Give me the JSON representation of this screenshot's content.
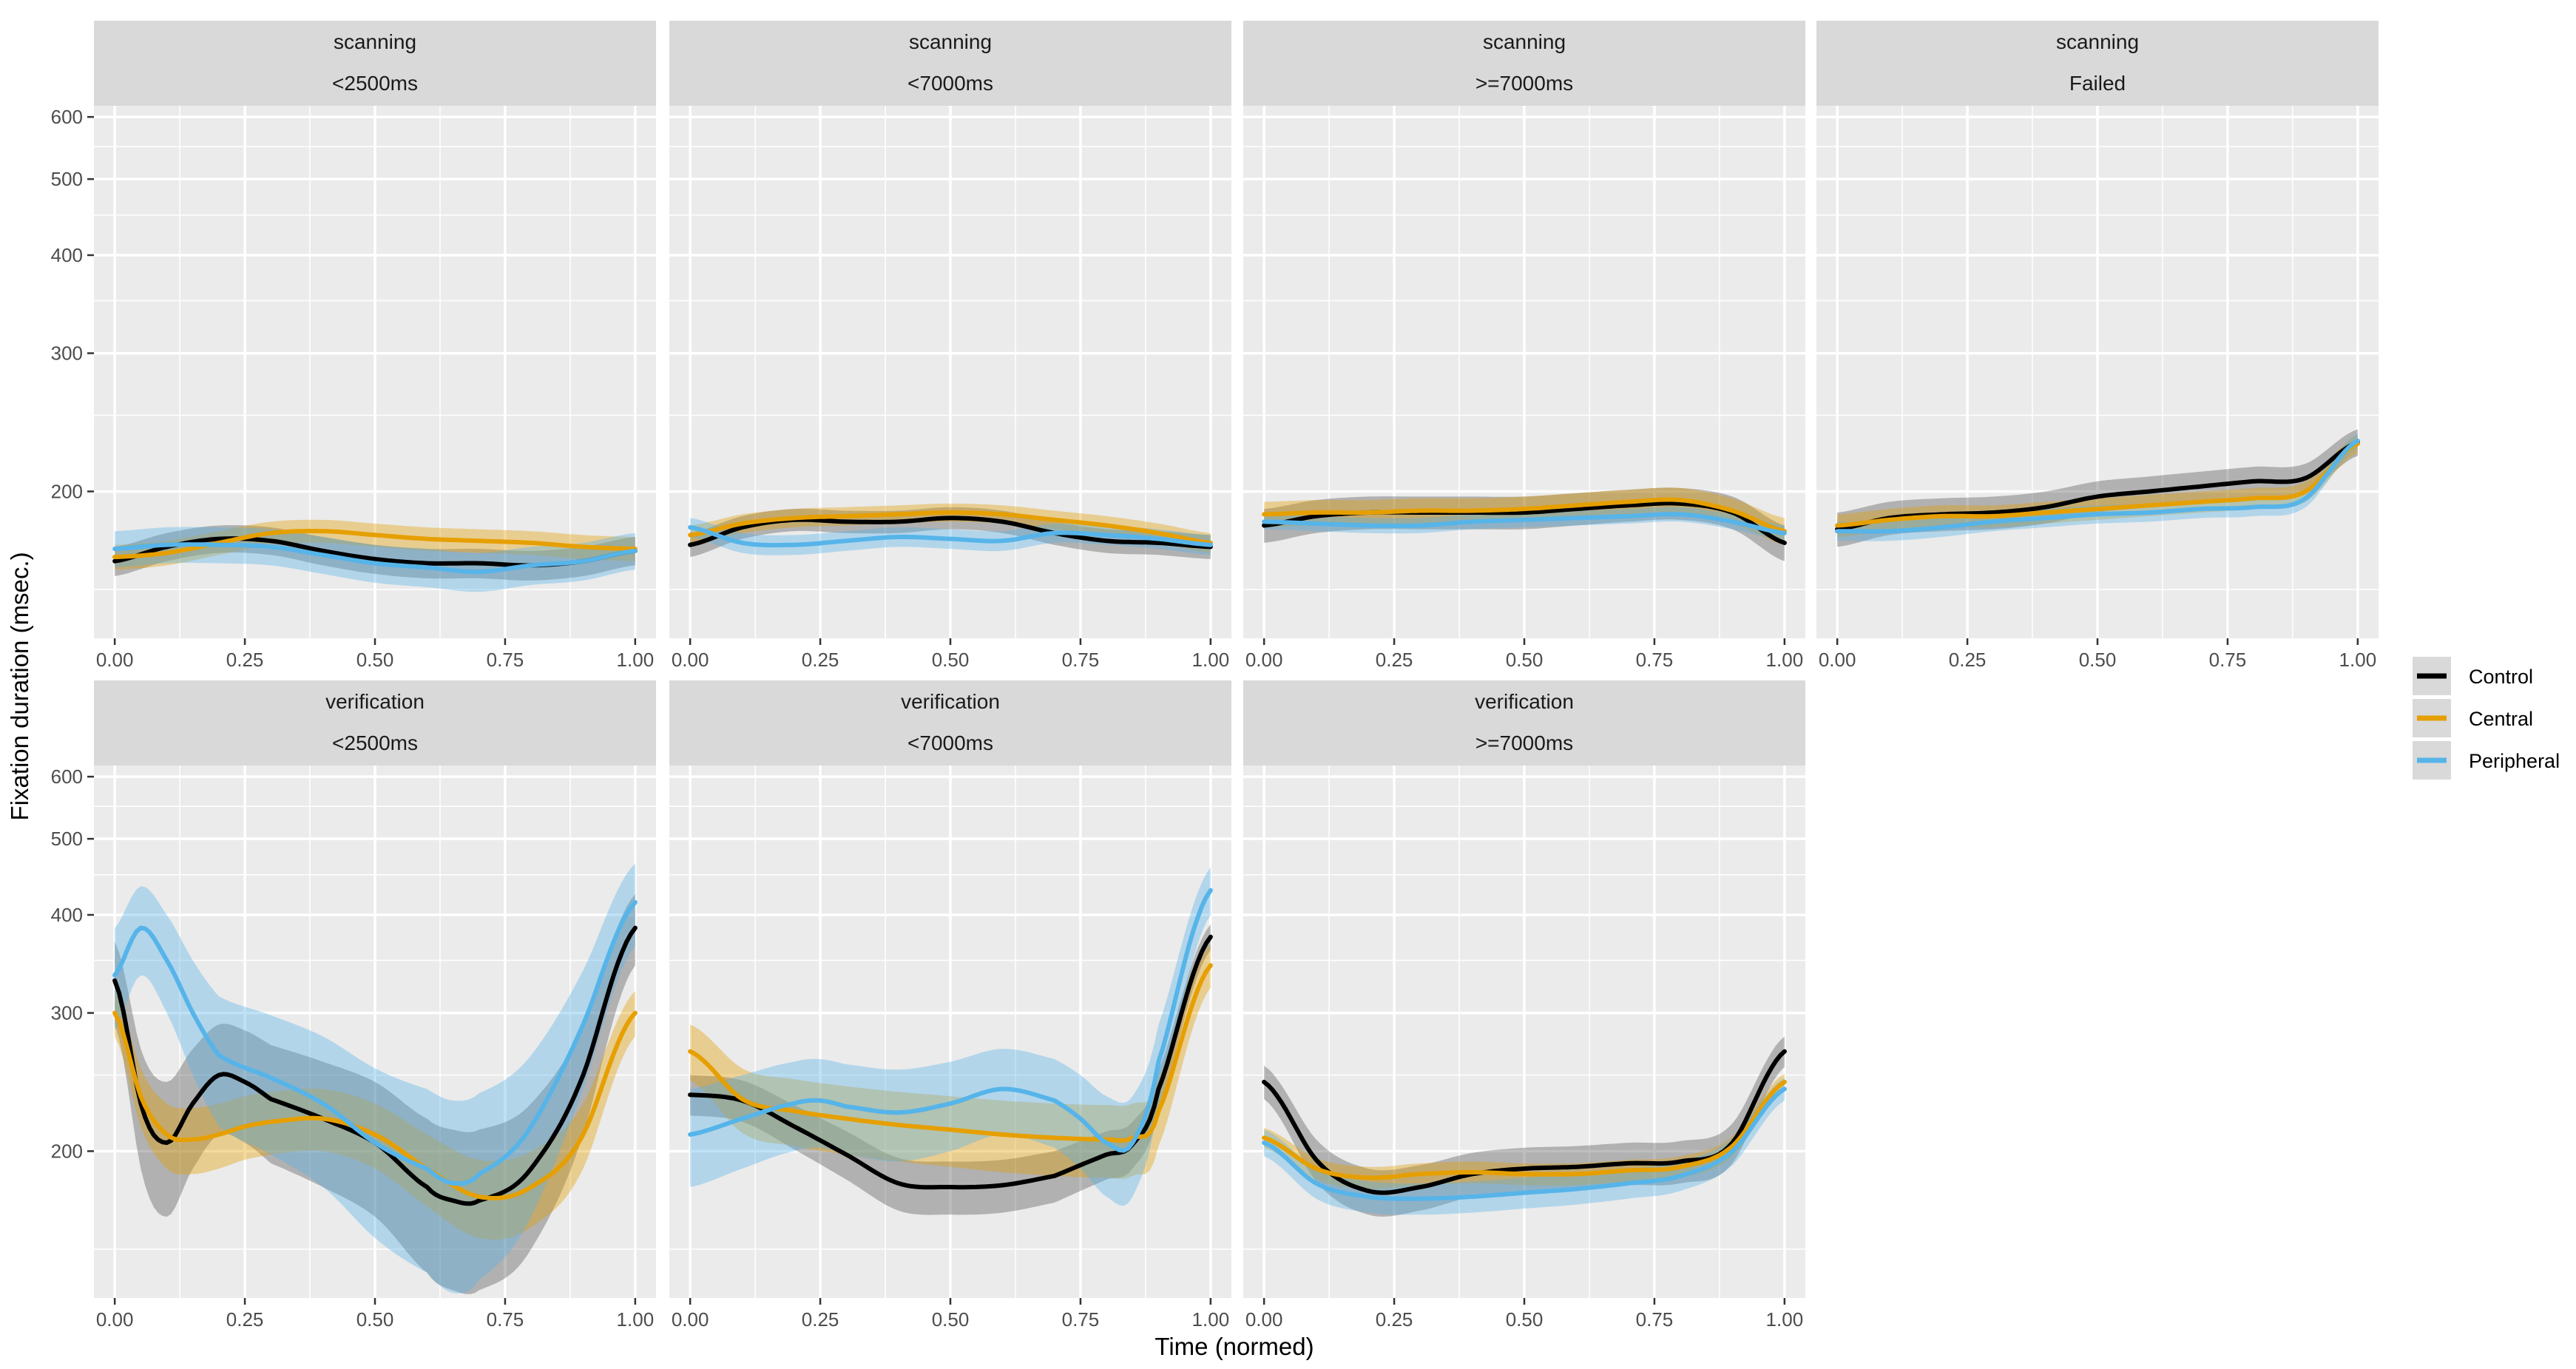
{
  "chart_data": {
    "type": "line",
    "xlabel": "Time (normed)",
    "ylabel": "Fixation duration (msec.)",
    "y_scale": "log",
    "ylim": [
      130,
      620
    ],
    "xlim": [
      -0.04,
      1.04
    ],
    "grid": true,
    "x_ticks": [
      "0.00",
      "0.25",
      "0.50",
      "0.75",
      "1.00"
    ],
    "x_tick_values": [
      0,
      0.25,
      0.5,
      0.75,
      1
    ],
    "y_ticks": [
      "200",
      "300",
      "400",
      "500",
      "600"
    ],
    "y_tick_values": [
      200,
      300,
      400,
      500,
      600
    ],
    "legend": {
      "position": "right",
      "entries": [
        {
          "name": "Control",
          "color": "#000000"
        },
        {
          "name": "Central",
          "color": "#E69F00"
        },
        {
          "name": "Peripheral",
          "color": "#56B4E9"
        }
      ]
    },
    "panels": [
      {
        "row": 0,
        "col": 0,
        "strip": [
          "scanning",
          "<2500ms"
        ],
        "series": [
          {
            "name": "Control",
            "x": [
              0,
              0.1,
              0.2,
              0.3,
              0.4,
              0.5,
              0.6,
              0.7,
              0.8,
              0.9,
              1
            ],
            "y": [
              163,
              170,
              174,
              173,
              168,
              164,
              162,
              162,
              161,
              163,
              168
            ],
            "band": 7
          },
          {
            "name": "Central",
            "x": [
              0,
              0.1,
              0.2,
              0.3,
              0.4,
              0.5,
              0.6,
              0.7,
              0.8,
              0.9,
              1
            ],
            "y": [
              165,
              167,
              172,
              177,
              178,
              176,
              174,
              173,
              172,
              170,
              169
            ],
            "band": 6
          },
          {
            "name": "Peripheral",
            "x": [
              0,
              0.1,
              0.2,
              0.3,
              0.4,
              0.5,
              0.6,
              0.7,
              0.8,
              0.9,
              1
            ],
            "y": [
              169,
              171,
              171,
              170,
              166,
              162,
              160,
              158,
              161,
              163,
              168
            ],
            "band": 9
          }
        ]
      },
      {
        "row": 0,
        "col": 1,
        "strip": [
          "scanning",
          "<7000ms"
        ],
        "series": [
          {
            "name": "Control",
            "x": [
              0,
              0.1,
              0.2,
              0.3,
              0.4,
              0.5,
              0.6,
              0.7,
              0.8,
              0.9,
              1
            ],
            "y": [
              171,
              180,
              184,
              183,
              183,
              185,
              183,
              177,
              173,
              172,
              170
            ],
            "band": 6
          },
          {
            "name": "Central",
            "x": [
              0,
              0.1,
              0.2,
              0.3,
              0.4,
              0.5,
              0.6,
              0.7,
              0.8,
              0.9,
              1
            ],
            "y": [
              176,
              182,
              185,
              186,
              187,
              188,
              187,
              184,
              181,
              177,
              172
            ],
            "band": 5
          },
          {
            "name": "Peripheral",
            "x": [
              0,
              0.1,
              0.2,
              0.3,
              0.4,
              0.5,
              0.6,
              0.7,
              0.8,
              0.9,
              1
            ],
            "y": [
              180,
              172,
              171,
              173,
              175,
              174,
              173,
              177,
              176,
              174,
              171
            ],
            "band": 5
          }
        ]
      },
      {
        "row": 0,
        "col": 2,
        "strip": [
          "scanning",
          ">=7000ms"
        ],
        "series": [
          {
            "name": "Control",
            "x": [
              0,
              0.1,
              0.2,
              0.3,
              0.4,
              0.5,
              0.6,
              0.7,
              0.8,
              0.9,
              1
            ],
            "y": [
              181,
              186,
              188,
              188,
              188,
              188,
              190,
              192,
              193,
              188,
              172
            ],
            "band": 9
          },
          {
            "name": "Central",
            "x": [
              0,
              0.1,
              0.2,
              0.3,
              0.4,
              0.5,
              0.6,
              0.7,
              0.8,
              0.9,
              1
            ],
            "y": [
              187,
              188,
              188,
              189,
              189,
              190,
              192,
              194,
              195,
              189,
              178
            ],
            "band": 7
          },
          {
            "name": "Peripheral",
            "x": [
              0,
              0.1,
              0.2,
              0.3,
              0.4,
              0.5,
              0.6,
              0.7,
              0.8,
              0.9,
              1
            ],
            "y": [
              183,
              182,
              181,
              181,
              183,
              184,
              185,
              186,
              187,
              183,
              177
            ],
            "band": 4
          }
        ]
      },
      {
        "row": 0,
        "col": 3,
        "strip": [
          "scanning",
          "Failed"
        ],
        "series": [
          {
            "name": "Control",
            "x": [
              0,
              0.1,
              0.2,
              0.3,
              0.4,
              0.5,
              0.6,
              0.7,
              0.8,
              0.9,
              1
            ],
            "y": [
              179,
              185,
              187,
              188,
              191,
              197,
              200,
              203,
              206,
              208,
              231
            ],
            "band": 9
          },
          {
            "name": "Central",
            "x": [
              0,
              0.1,
              0.2,
              0.3,
              0.4,
              0.5,
              0.6,
              0.7,
              0.8,
              0.9,
              1
            ],
            "y": [
              181,
              184,
              186,
              186,
              188,
              190,
              192,
              194,
              196,
              200,
              230
            ],
            "band": 6
          },
          {
            "name": "Peripheral",
            "x": [
              0,
              0.1,
              0.2,
              0.3,
              0.4,
              0.5,
              0.6,
              0.7,
              0.8,
              0.9,
              1
            ],
            "y": [
              178,
              178,
              180,
              183,
              185,
              187,
              188,
              190,
              191,
              196,
              232
            ],
            "band": 5
          }
        ]
      },
      {
        "row": 1,
        "col": 0,
        "strip": [
          "verification",
          "<2500ms"
        ],
        "series": [
          {
            "name": "Control",
            "x": [
              0,
              0.05,
              0.1,
              0.15,
              0.2,
              0.25,
              0.3,
              0.4,
              0.5,
              0.6,
              0.65,
              0.7,
              0.8,
              0.9,
              1
            ],
            "y": [
              330,
              230,
              205,
              230,
              250,
              245,
              233,
              220,
              205,
              180,
              173,
              173,
              190,
              250,
              385
            ],
            "band": 40
          },
          {
            "name": "Central",
            "x": [
              0,
              0.05,
              0.1,
              0.15,
              0.2,
              0.25,
              0.3,
              0.4,
              0.5,
              0.6,
              0.7,
              0.8,
              0.9,
              1
            ],
            "y": [
              300,
              235,
              210,
              207,
              210,
              215,
              218,
              220,
              210,
              190,
              175,
              180,
              210,
              300
            ],
            "band": 20
          },
          {
            "name": "Peripheral",
            "x": [
              0,
              0.05,
              0.1,
              0.15,
              0.2,
              0.3,
              0.4,
              0.5,
              0.6,
              0.65,
              0.7,
              0.8,
              0.9,
              1
            ],
            "y": [
              335,
              385,
              350,
              300,
              265,
              248,
              230,
              205,
              190,
              182,
              187,
              215,
              290,
              415
            ],
            "band": 50
          }
        ]
      },
      {
        "row": 1,
        "col": 1,
        "strip": [
          "verification",
          "<7000ms"
        ],
        "series": [
          {
            "name": "Control",
            "x": [
              0,
              0.1,
              0.2,
              0.3,
              0.4,
              0.5,
              0.6,
              0.7,
              0.75,
              0.8,
              0.85,
              0.9,
              1
            ],
            "y": [
              236,
              232,
              215,
              198,
              182,
              180,
              181,
              186,
              192,
              198,
              204,
              240,
              375
            ],
            "band": 14
          },
          {
            "name": "Central",
            "x": [
              0,
              0.1,
              0.2,
              0.3,
              0.4,
              0.5,
              0.6,
              0.7,
              0.8,
              0.85,
              0.9,
              1
            ],
            "y": [
              268,
              233,
              225,
              220,
              216,
              213,
              210,
              208,
              207,
              208,
              225,
              345
            ],
            "band": 22
          },
          {
            "name": "Peripheral",
            "x": [
              0,
              0.1,
              0.2,
              0.25,
              0.3,
              0.4,
              0.5,
              0.6,
              0.7,
              0.75,
              0.8,
              0.85,
              0.9,
              1
            ],
            "y": [
              210,
              220,
              230,
              232,
              228,
              224,
              230,
              240,
              232,
              220,
              205,
              205,
              260,
              430
            ],
            "band": 30
          }
        ]
      },
      {
        "row": 1,
        "col": 2,
        "strip": [
          "verification",
          ">=7000ms"
        ],
        "series": [
          {
            "name": "Control",
            "x": [
              0,
              0.1,
              0.2,
              0.3,
              0.4,
              0.5,
              0.6,
              0.7,
              0.8,
              0.9,
              1
            ],
            "y": [
              245,
              195,
              178,
              180,
              187,
              190,
              191,
              193,
              194,
              205,
              268
            ],
            "band": 12
          },
          {
            "name": "Central",
            "x": [
              0,
              0.1,
              0.2,
              0.3,
              0.4,
              0.5,
              0.6,
              0.7,
              0.8,
              0.9,
              1
            ],
            "y": [
              208,
              190,
              185,
              187,
              188,
              187,
              187,
              189,
              191,
              203,
              245
            ],
            "band": 6
          },
          {
            "name": "Peripheral",
            "x": [
              0,
              0.1,
              0.2,
              0.3,
              0.4,
              0.5,
              0.6,
              0.7,
              0.8,
              0.9,
              1
            ],
            "y": [
              205,
              182,
              175,
              174,
              175,
              177,
              179,
              182,
              186,
              200,
              240
            ],
            "band": 8
          }
        ]
      }
    ]
  }
}
